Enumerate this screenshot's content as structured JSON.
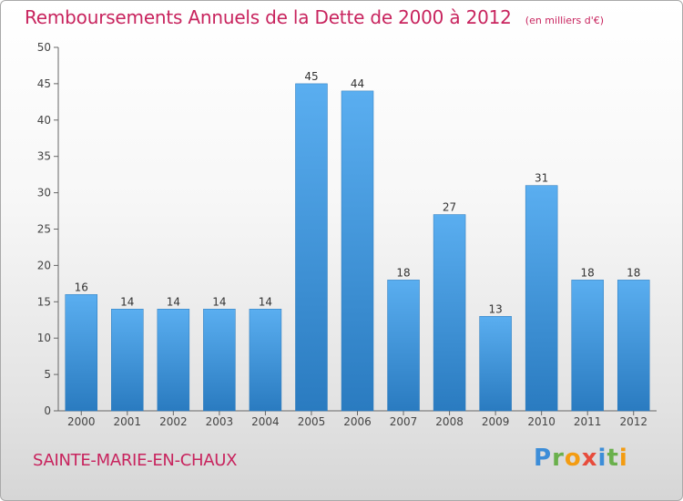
{
  "title": "Remboursements Annuels de la Dette de 2000 à 2012",
  "unit_note": "(en milliers d'€)",
  "town": "SAINTE-MARIE-EN-CHAUX",
  "brand": "Proxiti",
  "colors": {
    "title": "#c8245e",
    "bar_light": "#5aaef0",
    "bar_dark": "#2a7bc0",
    "axis": "#666666"
  },
  "chart_data": {
    "type": "bar",
    "title": "Remboursements Annuels de la Dette de 2000 à 2012",
    "xlabel": "",
    "ylabel": "",
    "categories": [
      "2000",
      "2001",
      "2002",
      "2003",
      "2004",
      "2005",
      "2006",
      "2007",
      "2008",
      "2009",
      "2010",
      "2011",
      "2012"
    ],
    "values": [
      16,
      14,
      14,
      14,
      14,
      45,
      44,
      18,
      27,
      13,
      31,
      18,
      18
    ],
    "ylim": [
      0,
      50
    ],
    "yticks": [
      0,
      5,
      10,
      15,
      20,
      25,
      30,
      35,
      40,
      45,
      50
    ],
    "grid": false,
    "legend": "none"
  }
}
